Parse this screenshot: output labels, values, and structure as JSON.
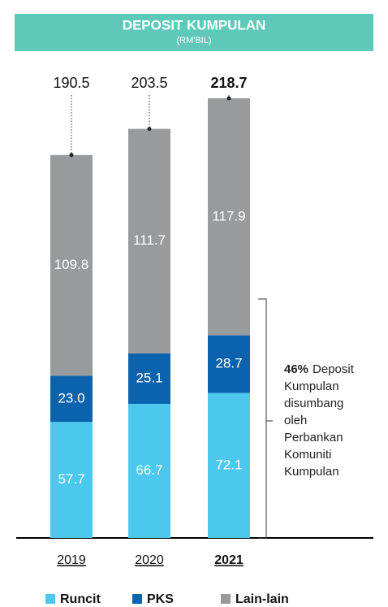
{
  "chart_data": {
    "type": "stacked-bar",
    "title": "DEPOSIT KUMPULAN",
    "subtitle": "(RM'BIL)",
    "categories": [
      "2019",
      "2020",
      "2021"
    ],
    "highlight": "2021",
    "series": [
      {
        "name": "Runcit",
        "color": "#4cc8ee",
        "values": [
          57.7,
          66.7,
          72.1
        ]
      },
      {
        "name": "PKS",
        "color": "#0b63ae",
        "values": [
          23.0,
          25.1,
          28.7
        ],
        "value_labels": [
          "23.0",
          "25.1",
          "28.7"
        ]
      },
      {
        "name": "Lain-lain",
        "color": "#999a9c",
        "values": [
          109.8,
          111.7,
          117.9
        ]
      }
    ],
    "totals": [
      190.5,
      203.5,
      218.7
    ],
    "annotation": {
      "highlight": "46%",
      "lines": [
        "Deposit",
        "Kumpulan",
        "disumbang",
        "oleh",
        "Perbankan",
        "Komuniti",
        "Kumpulan"
      ]
    }
  }
}
